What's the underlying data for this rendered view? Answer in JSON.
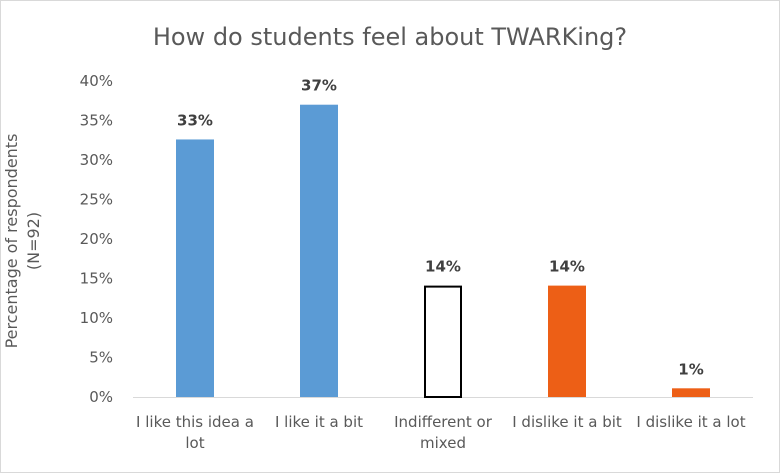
{
  "chart_data": {
    "type": "bar",
    "title": "How do students feel about TWARKing?",
    "ylabel": "Percentage of respondents\n(N=92)",
    "xlabel": "",
    "ylim": [
      0,
      40
    ],
    "yticks": [
      "0%",
      "5%",
      "10%",
      "15%",
      "20%",
      "25%",
      "30%",
      "35%",
      "40%"
    ],
    "grid": false,
    "legend": "none",
    "categories": [
      "I like this idea a lot",
      "I like it a bit",
      "Indifferent or mixed",
      "I dislike it a bit",
      "I dislike it a lot"
    ],
    "category_lines": [
      [
        "I like this idea a",
        "lot"
      ],
      [
        "I like it a bit"
      ],
      [
        "Indifferent or",
        "mixed"
      ],
      [
        "I dislike it a bit"
      ],
      [
        "I dislike it a lot"
      ]
    ],
    "values": [
      32.6,
      37.0,
      14.1,
      14.1,
      1.1
    ],
    "data_labels": [
      "33%",
      "37%",
      "14%",
      "14%",
      "1%"
    ],
    "bar_styles": [
      {
        "fill": "#5b9bd5",
        "stroke": "none"
      },
      {
        "fill": "#5b9bd5",
        "stroke": "none"
      },
      {
        "fill": "#ffffff",
        "stroke": "#000000"
      },
      {
        "fill": "#ed5f16",
        "stroke": "none"
      },
      {
        "fill": "#ed5f16",
        "stroke": "none"
      }
    ]
  }
}
